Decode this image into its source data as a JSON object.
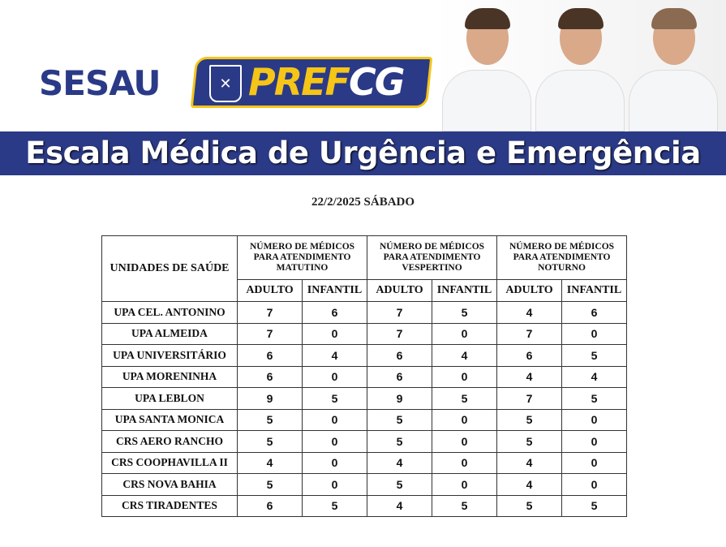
{
  "header": {
    "sesau_logo": "SESAU",
    "pref_logo": {
      "part1": "PREF",
      "part2": "CG"
    },
    "title": "Escala Médica de Urgência e Emergência",
    "colors": {
      "brand_blue": "#2b3a87",
      "brand_yellow": "#f5c518"
    }
  },
  "date": "22/2/2025 SÁBADO",
  "table": {
    "unit_header": "UNIDADES DE SAÚDE",
    "groups": [
      "NÚMERO DE MÉDICOS PARA ATENDIMENTO MATUTINO",
      "NÚMERO DE MÉDICOS PARA ATENDIMENTO VESPERTINO",
      "NÚMERO DE MÉDICOS PARA ATENDIMENTO NOTURNO"
    ],
    "subheaders": [
      "ADULTO",
      "INFANTIL",
      "ADULTO",
      "INFANTIL",
      "ADULTO",
      "INFANTIL"
    ],
    "rows": [
      {
        "name": "UPA CEL. ANTONINO",
        "values": [
          "7",
          "6",
          "7",
          "5",
          "4",
          "6"
        ]
      },
      {
        "name": "UPA ALMEIDA",
        "values": [
          "7",
          "0",
          "7",
          "0",
          "7",
          "0"
        ]
      },
      {
        "name": "UPA UNIVERSITÁRIO",
        "values": [
          "6",
          "4",
          "6",
          "4",
          "6",
          "5"
        ]
      },
      {
        "name": "UPA MORENINHA",
        "values": [
          "6",
          "0",
          "6",
          "0",
          "4",
          "4"
        ]
      },
      {
        "name": "UPA LEBLON",
        "values": [
          "9",
          "5",
          "9",
          "5",
          "7",
          "5"
        ]
      },
      {
        "name": "UPA SANTA MONICA",
        "values": [
          "5",
          "0",
          "5",
          "0",
          "5",
          "0"
        ]
      },
      {
        "name": "CRS AERO RANCHO",
        "values": [
          "5",
          "0",
          "5",
          "0",
          "5",
          "0"
        ]
      },
      {
        "name": "CRS COOPHAVILLA II",
        "values": [
          "4",
          "0",
          "4",
          "0",
          "4",
          "0"
        ]
      },
      {
        "name": "CRS NOVA BAHIA",
        "values": [
          "5",
          "0",
          "5",
          "0",
          "4",
          "0"
        ]
      },
      {
        "name": "CRS TIRADENTES",
        "values": [
          "6",
          "5",
          "4",
          "5",
          "5",
          "5"
        ]
      }
    ]
  }
}
